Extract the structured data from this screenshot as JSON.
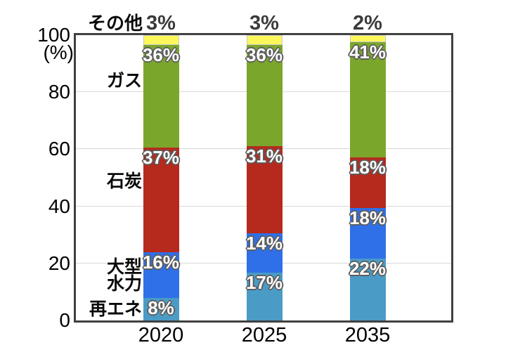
{
  "chart_data": {
    "type": "bar",
    "stacked": true,
    "categories": [
      "2020",
      "2025",
      "2035"
    ],
    "series": [
      {
        "name": "再エネ",
        "color": "#4a9bc6",
        "values": [
          8,
          17,
          22
        ]
      },
      {
        "name": "大型水力",
        "color": "#2f70e8",
        "values": [
          16,
          14,
          18
        ]
      },
      {
        "name": "石炭",
        "color": "#b62a1d",
        "values": [
          37,
          31,
          18
        ]
      },
      {
        "name": "ガス",
        "color": "#7ba62c",
        "values": [
          36,
          36,
          41
        ]
      },
      {
        "name": "その他",
        "color": "#fcf85c",
        "values": [
          3,
          3,
          2
        ]
      }
    ],
    "series_label_lines": {
      "大型水力": [
        "大型",
        "水力"
      ]
    },
    "ylabel": "(%)",
    "yticks": [
      0,
      20,
      40,
      60,
      80,
      100
    ],
    "ylim": [
      0,
      100
    ],
    "grid": true,
    "value_suffix": "%",
    "legend_position": "left-inline",
    "colors": {
      "axis_border": "#404040",
      "gridline": "#d9d9d9",
      "bar_value_text": "#ffffff",
      "bar_value_outline": "#5d5d5d",
      "top_value_text": "#3a3a3a",
      "tick_text": "#000000"
    }
  }
}
